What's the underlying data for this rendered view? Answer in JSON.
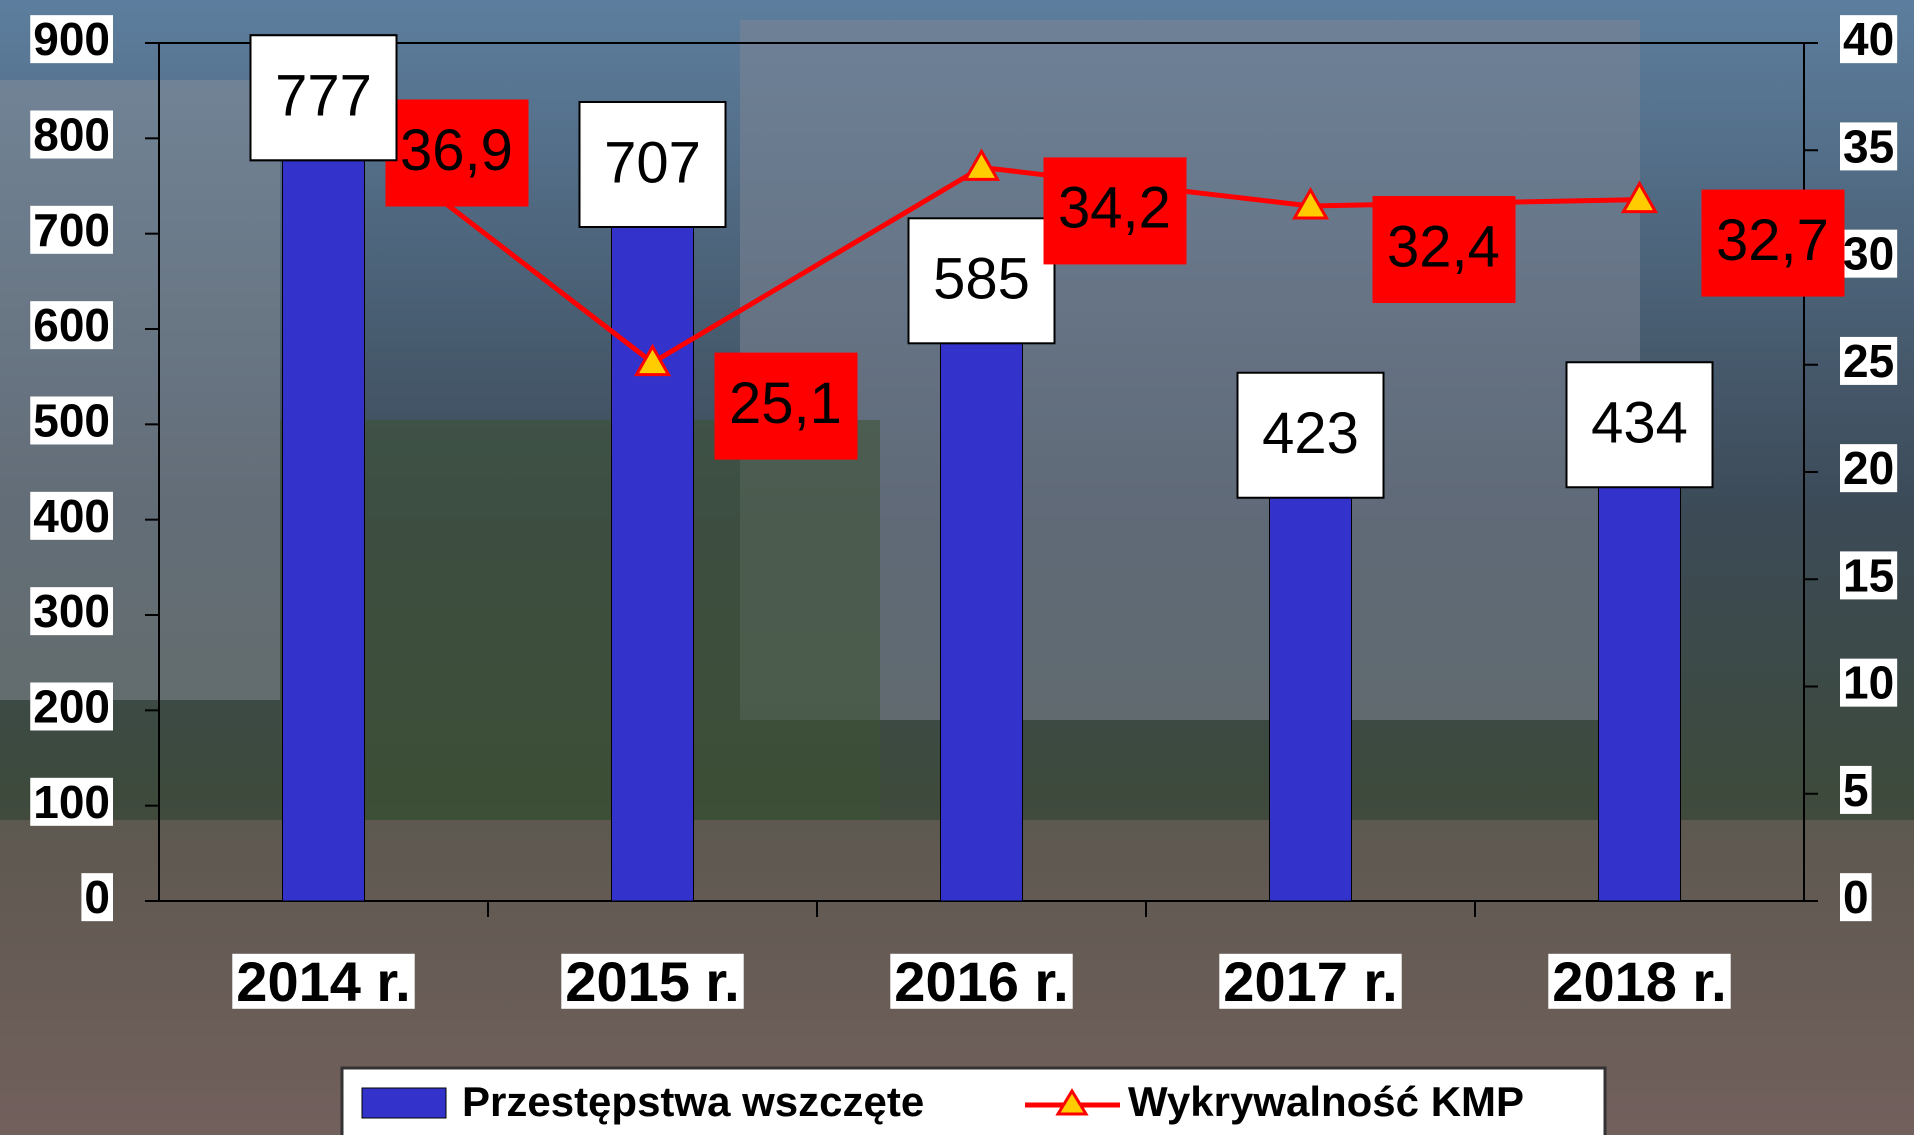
{
  "chart_data": {
    "type": "bar",
    "categories": [
      "2014 r.",
      "2015 r.",
      "2016 r.",
      "2017 r.",
      "2018 r."
    ],
    "series": [
      {
        "name": "Przestępstwa wszczęte",
        "color": "#3333cc",
        "values": [
          777,
          707,
          585,
          423,
          434
        ]
      },
      {
        "name": "Wykrywalność KMP",
        "color": "#ff0000",
        "type": "line",
        "axis": "y2",
        "values": [
          36.9,
          25.1,
          34.2,
          32.4,
          32.7
        ],
        "value_labels": [
          "36,9",
          "25,1",
          "34,2",
          "32,4",
          "32,7"
        ]
      }
    ],
    "ylim": [
      0,
      900
    ],
    "yticks": [
      0,
      100,
      200,
      300,
      400,
      500,
      600,
      700,
      800,
      900
    ],
    "y2lim": [
      0,
      40
    ],
    "y2ticks": [
      0,
      5,
      10,
      15,
      20,
      25,
      30,
      35,
      40
    ],
    "legend": "bottom"
  }
}
